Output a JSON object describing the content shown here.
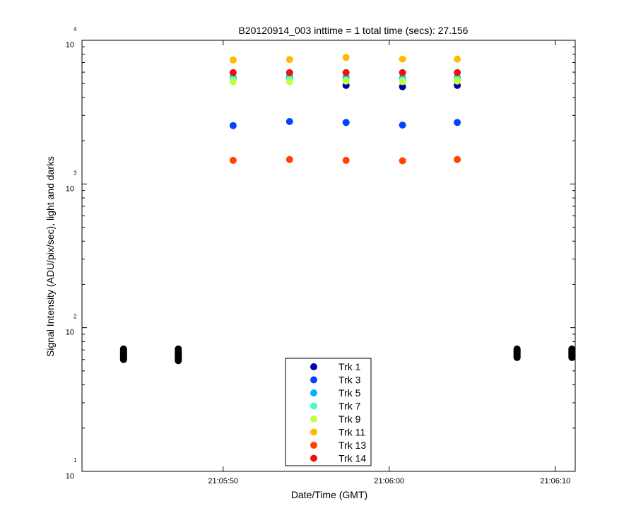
{
  "chart_data": {
    "type": "scatter",
    "title": "B20120914_003 inttime = 1 total time (secs): 27.156",
    "xlabel": "Date/Time (GMT)",
    "ylabel": "Signal Intensity (ADU/pix/sec), light and darks",
    "x_unit": "seconds after 21:05:00",
    "xlim": [
      41.5,
      71.2
    ],
    "ylim": [
      10,
      10000
    ],
    "yscale": "log",
    "x_ticks": [
      {
        "x": 50,
        "label": "21:05:50"
      },
      {
        "x": 60,
        "label": "21:06:00"
      },
      {
        "x": 70,
        "label": "21:06:10"
      }
    ],
    "y_ticks": [
      {
        "value": 10,
        "base": "10",
        "exp": "1"
      },
      {
        "value": 100,
        "base": "10",
        "exp": "2"
      },
      {
        "value": 1000,
        "base": "10",
        "exp": "3"
      },
      {
        "value": 10000,
        "base": "10",
        "exp": "4"
      }
    ],
    "grid": false,
    "legend_position": "bottom-center",
    "light_x": [
      50.6,
      54.0,
      57.4,
      60.8,
      64.1
    ],
    "series": [
      {
        "name": "Trk 1",
        "color": "#0000aa",
        "values": [
          5400,
          5500,
          4850,
          4750,
          4850
        ]
      },
      {
        "name": "Trk 3",
        "color": "#0044ff",
        "values": [
          2550,
          2720,
          2680,
          2570,
          2680
        ]
      },
      {
        "name": "Trk 5",
        "color": "#00b4ff",
        "values": [
          5500,
          5600,
          5500,
          5450,
          5500
        ]
      },
      {
        "name": "Trk 7",
        "color": "#40ffc0",
        "values": [
          5350,
          5400,
          5300,
          5300,
          5350
        ]
      },
      {
        "name": "Trk 9",
        "color": "#c0ff40",
        "values": [
          5150,
          5150,
          5200,
          5150,
          5200
        ]
      },
      {
        "name": "Trk 11",
        "color": "#ffbb00",
        "values": [
          7300,
          7350,
          7600,
          7400,
          7400
        ]
      },
      {
        "name": "Trk 13",
        "color": "#ff4400",
        "values": [
          1460,
          1480,
          1460,
          1450,
          1480
        ]
      },
      {
        "name": "Trk 14",
        "color": "#ee1111",
        "values": [
          5950,
          5950,
          5950,
          5950,
          5950
        ]
      }
    ],
    "darks": {
      "color": "#000000",
      "x": [
        44.0,
        47.3,
        67.7,
        71.0
      ],
      "y_ranges": [
        [
          60,
          71
        ],
        [
          59,
          71
        ],
        [
          62,
          71
        ],
        [
          62,
          71
        ]
      ]
    }
  }
}
